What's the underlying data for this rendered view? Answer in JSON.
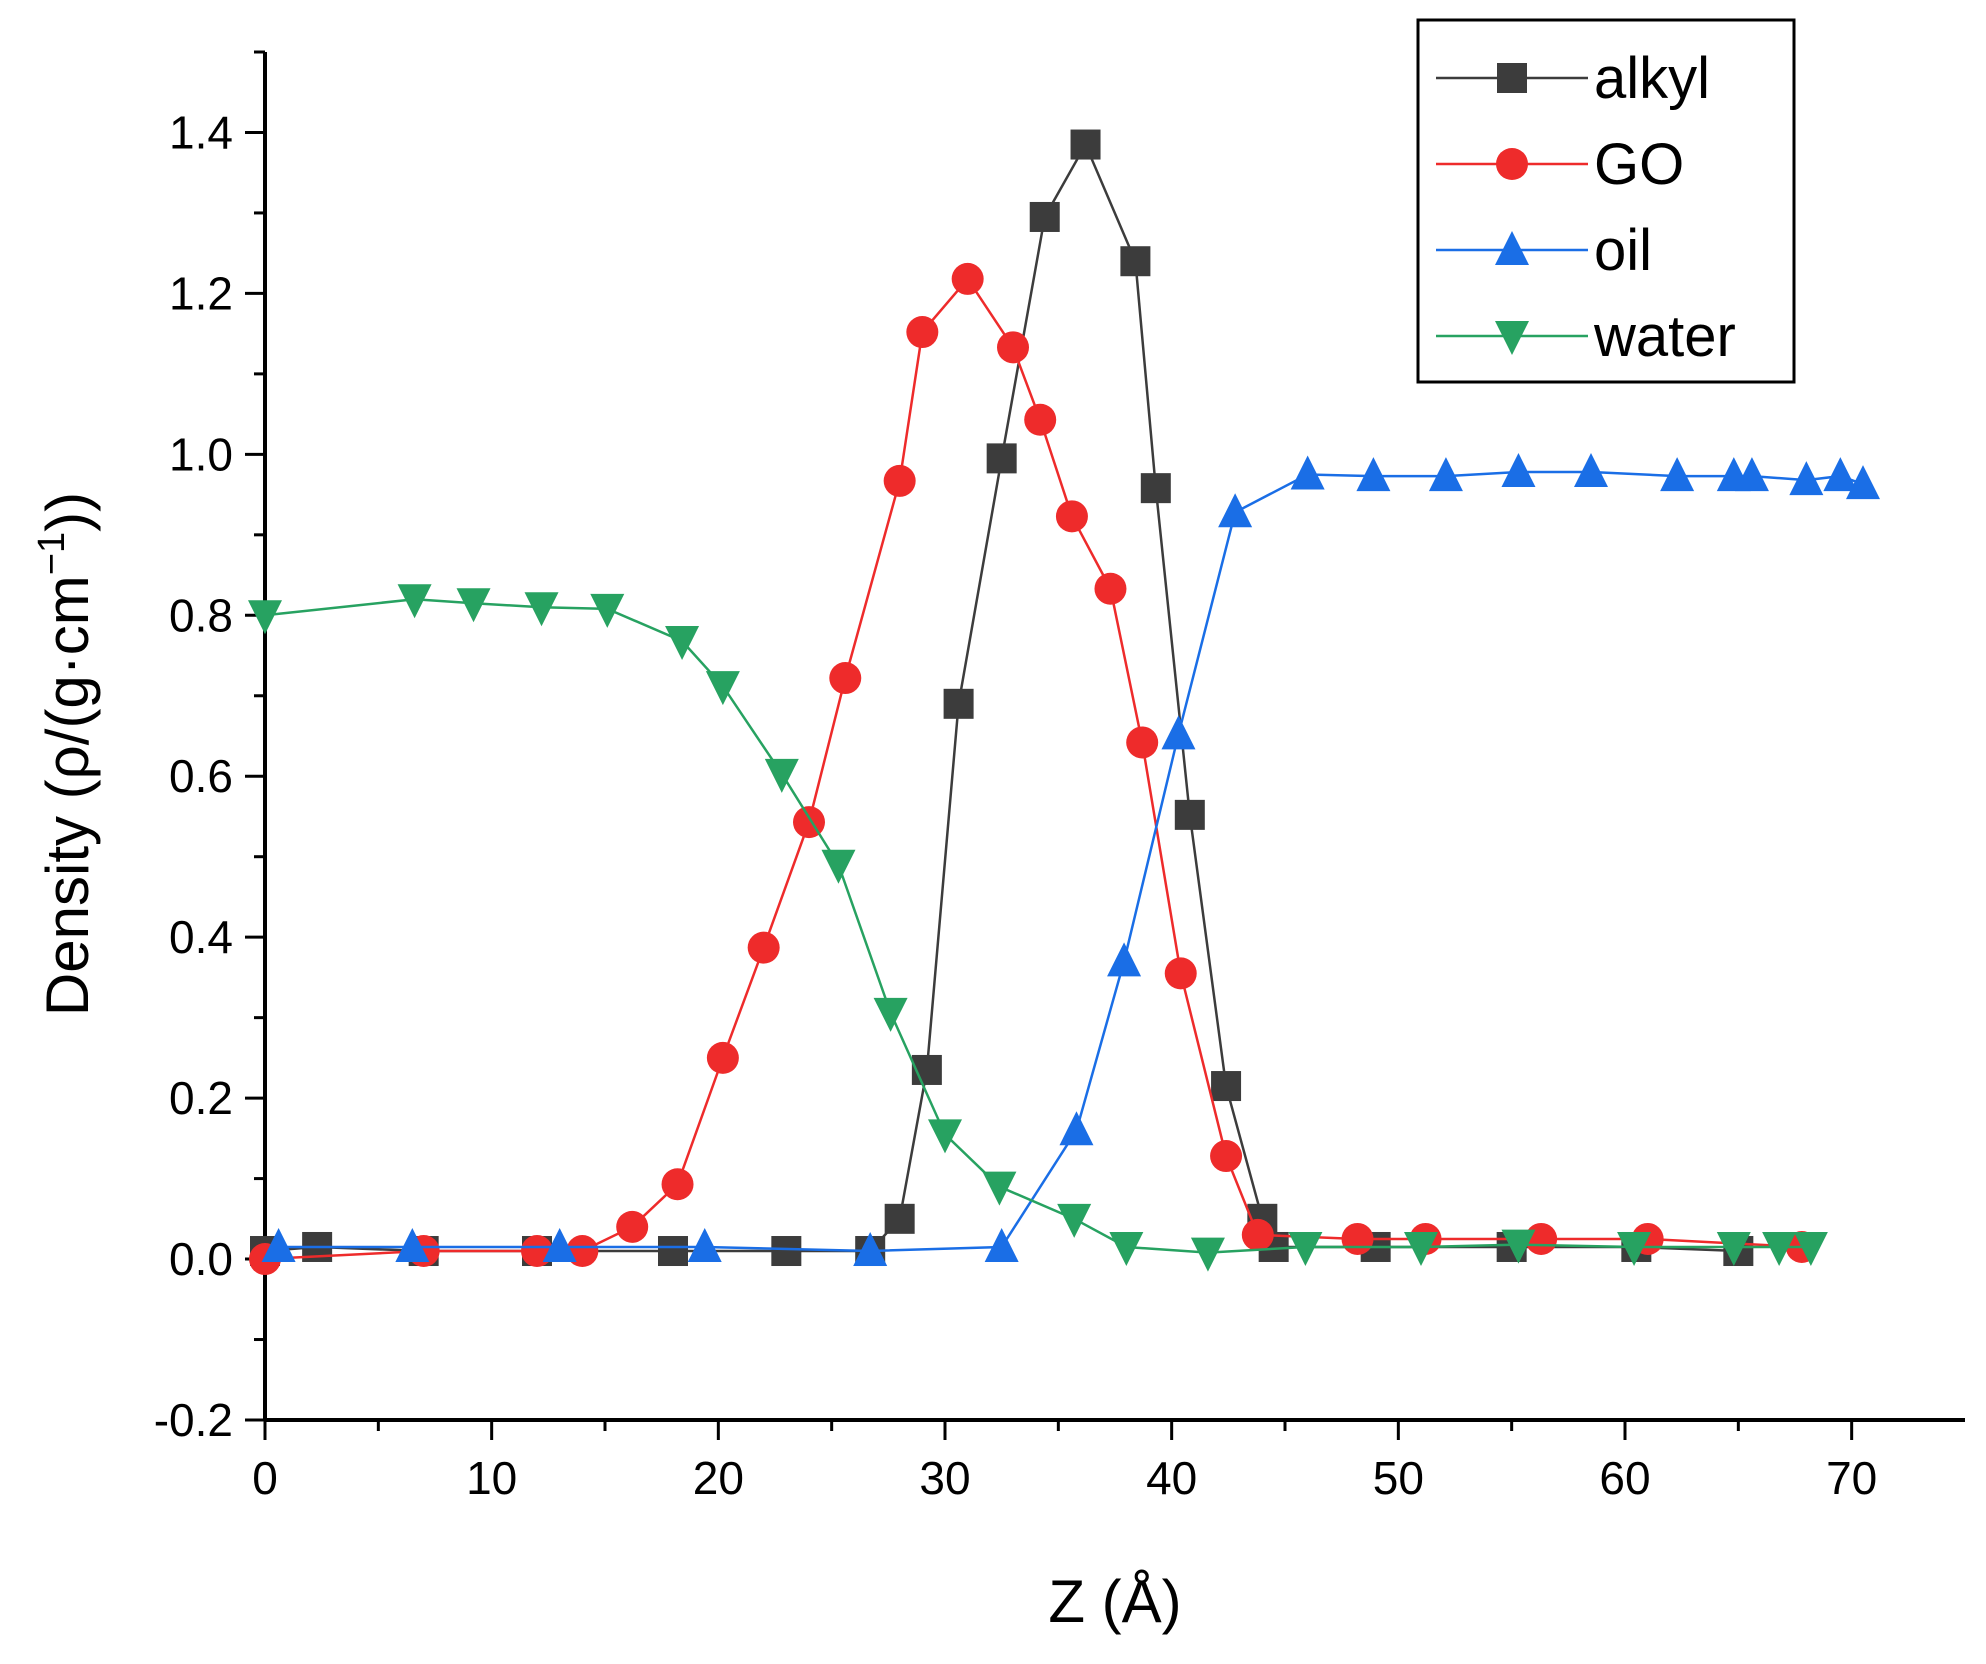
{
  "chart_data": {
    "type": "line",
    "xlabel": "Z (Å)",
    "ylabel_main": "Density (ρ/(g·cm",
    "ylabel_sup": "−1",
    "ylabel_close": "))",
    "xlim": [
      0,
      75
    ],
    "ylim": [
      -0.2,
      1.5
    ],
    "xticks": [
      0,
      10,
      20,
      30,
      40,
      50,
      60,
      70
    ],
    "yticks": [
      -0.2,
      0.0,
      0.2,
      0.4,
      0.6,
      0.8,
      1.0,
      1.2,
      1.4
    ],
    "ytick_labels": [
      "-0.2",
      "0.0",
      "0.2",
      "0.4",
      "0.6",
      "0.8",
      "1.0",
      "1.2",
      "1.4"
    ],
    "grid": false,
    "legend_position": "top-right",
    "series": [
      {
        "name": "alkyl",
        "color": "#3c3c3c",
        "marker": "square",
        "points": [
          [
            0,
            0.01
          ],
          [
            2.3,
            0.015
          ],
          [
            7,
            0.01
          ],
          [
            12,
            0.01
          ],
          [
            18,
            0.01
          ],
          [
            23,
            0.01
          ],
          [
            26.7,
            0.01
          ],
          [
            28,
            0.05
          ],
          [
            29.2,
            0.235
          ],
          [
            30.6,
            0.69
          ],
          [
            32.5,
            0.995
          ],
          [
            34.4,
            1.295
          ],
          [
            36.2,
            1.385
          ],
          [
            38.4,
            1.24
          ],
          [
            39.3,
            0.958
          ],
          [
            40.8,
            0.552
          ],
          [
            42.4,
            0.215
          ],
          [
            44,
            0.05
          ],
          [
            44.5,
            0.015
          ],
          [
            49,
            0.015
          ],
          [
            55,
            0.015
          ],
          [
            60.5,
            0.015
          ],
          [
            65,
            0.01
          ]
        ]
      },
      {
        "name": "GO",
        "color": "#ee2b2b",
        "marker": "circle",
        "points": [
          [
            0,
            0.0
          ],
          [
            7,
            0.01
          ],
          [
            12,
            0.01
          ],
          [
            14,
            0.01
          ],
          [
            16.2,
            0.04
          ],
          [
            18.2,
            0.093
          ],
          [
            20.2,
            0.25
          ],
          [
            22,
            0.387
          ],
          [
            24,
            0.543
          ],
          [
            25.6,
            0.722
          ],
          [
            28,
            0.967
          ],
          [
            29,
            1.152
          ],
          [
            31,
            1.218
          ],
          [
            33,
            1.133
          ],
          [
            34.2,
            1.043
          ],
          [
            35.6,
            0.923
          ],
          [
            37.3,
            0.833
          ],
          [
            38.7,
            0.642
          ],
          [
            40.4,
            0.355
          ],
          [
            42.4,
            0.128
          ],
          [
            43.8,
            0.03
          ],
          [
            48.2,
            0.025
          ],
          [
            51.2,
            0.025
          ],
          [
            56.3,
            0.025
          ],
          [
            61,
            0.025
          ],
          [
            67.8,
            0.015
          ]
        ]
      },
      {
        "name": "oil",
        "color": "#1a6ee6",
        "marker": "triangle-up",
        "points": [
          [
            0.6,
            0.015
          ],
          [
            6.5,
            0.015
          ],
          [
            13,
            0.015
          ],
          [
            19.4,
            0.015
          ],
          [
            26.7,
            0.01
          ],
          [
            32.5,
            0.015
          ],
          [
            35.8,
            0.16
          ],
          [
            37.9,
            0.37
          ],
          [
            40.3,
            0.652
          ],
          [
            42.8,
            0.928
          ],
          [
            46,
            0.975
          ],
          [
            48.9,
            0.973
          ],
          [
            52.1,
            0.973
          ],
          [
            55.3,
            0.978
          ],
          [
            58.5,
            0.978
          ],
          [
            62.3,
            0.973
          ],
          [
            64.8,
            0.973
          ],
          [
            65.6,
            0.973
          ],
          [
            68,
            0.968
          ],
          [
            69.5,
            0.973
          ],
          [
            70.5,
            0.963
          ]
        ]
      },
      {
        "name": "water",
        "color": "#27a261",
        "marker": "triangle-down",
        "points": [
          [
            0,
            0.8
          ],
          [
            6.6,
            0.82
          ],
          [
            9.2,
            0.815
          ],
          [
            12.2,
            0.81
          ],
          [
            15.1,
            0.808
          ],
          [
            18.4,
            0.768
          ],
          [
            20.2,
            0.712
          ],
          [
            22.8,
            0.603
          ],
          [
            25.3,
            0.49
          ],
          [
            27.6,
            0.306
          ],
          [
            30,
            0.155
          ],
          [
            32.4,
            0.09
          ],
          [
            35.7,
            0.05
          ],
          [
            38,
            0.015
          ],
          [
            41.6,
            0.008
          ],
          [
            45.9,
            0.015
          ],
          [
            51,
            0.015
          ],
          [
            55.3,
            0.018
          ],
          [
            60.4,
            0.015
          ],
          [
            64.8,
            0.015
          ],
          [
            66.8,
            0.015
          ],
          [
            68.2,
            0.015
          ]
        ]
      }
    ]
  }
}
